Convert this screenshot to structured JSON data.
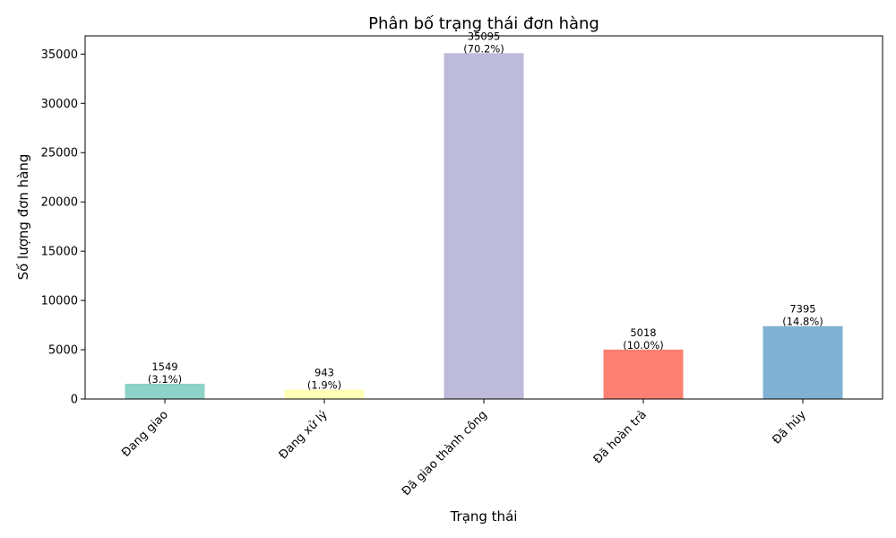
{
  "chart_data": {
    "type": "bar",
    "title": "Phân bố trạng thái đơn hàng",
    "xlabel": "Trạng thái",
    "ylabel": "Số lượng đơn hàng",
    "categories": [
      "Đang giao",
      "Đang xử lý",
      "Đã giao thành công",
      "Đã hoàn trả",
      "Đã hủy"
    ],
    "values": [
      1549,
      943,
      35095,
      5018,
      7395
    ],
    "percent_labels": [
      "(3.1%)",
      "(1.9%)",
      "(70.2%)",
      "(10.0%)",
      "(14.8%)"
    ],
    "colors": [
      "#8dd3c7",
      "#ffffb3",
      "#bebada",
      "#fb8072",
      "#80b1d3"
    ],
    "ylim": [
      0,
      36850
    ],
    "yticks": [
      0,
      5000,
      10000,
      15000,
      20000,
      25000,
      30000,
      35000
    ],
    "grid": false,
    "legend": "none"
  }
}
